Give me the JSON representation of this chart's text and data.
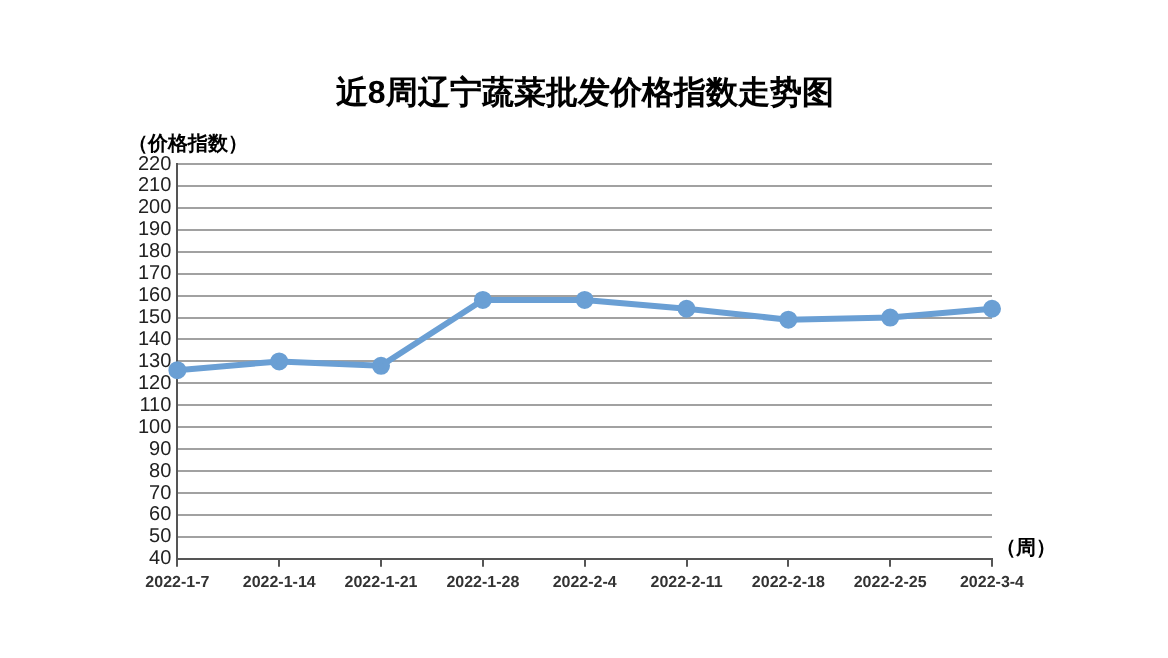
{
  "chart_data": {
    "type": "line",
    "title": "近8周辽宁蔬菜批发价格指数走势图",
    "ylabel": "（价格指数）",
    "xlabel": "（周）",
    "categories": [
      "2022-1-7",
      "2022-1-14",
      "2022-1-21",
      "2022-1-28",
      "2022-2-4",
      "2022-2-11",
      "2022-2-18",
      "2022-2-25",
      "2022-3-4"
    ],
    "series": [
      {
        "color": "#6a9fd4",
        "values": [
          126,
          130,
          128,
          158,
          158,
          154,
          149,
          150,
          154
        ]
      }
    ],
    "ylim": [
      40,
      220
    ],
    "yticks": [
      40,
      50,
      60,
      70,
      80,
      90,
      100,
      110,
      120,
      130,
      140,
      150,
      160,
      170,
      180,
      190,
      200,
      210,
      220
    ],
    "grid": "y",
    "legend": false,
    "marker": "circle",
    "line_style": "solid"
  }
}
